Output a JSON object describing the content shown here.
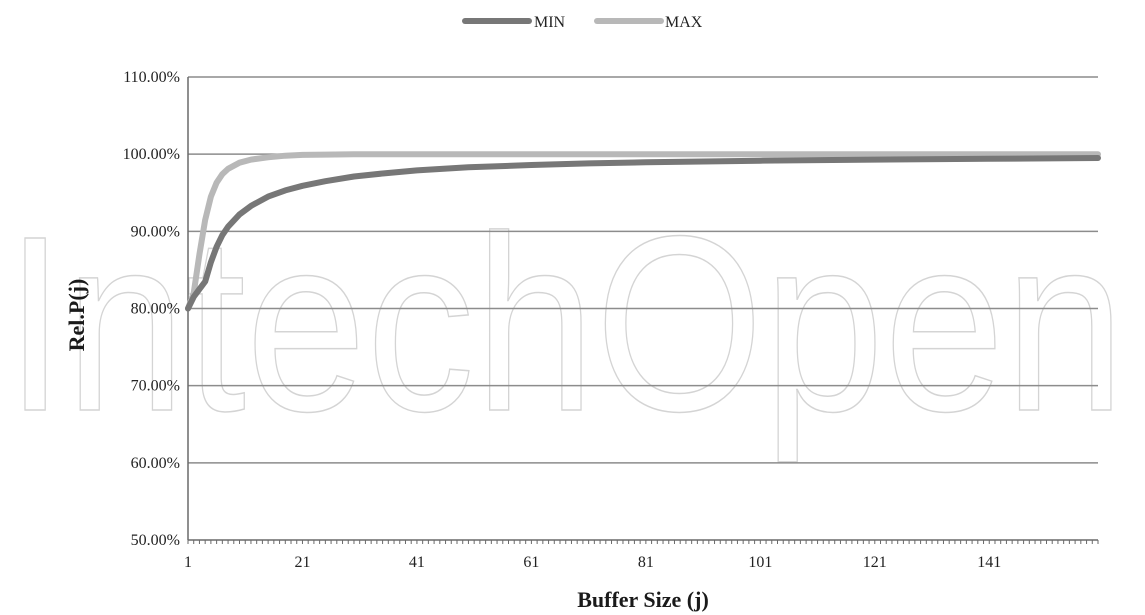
{
  "watermark": "IntechOpen",
  "chart_data": {
    "type": "line",
    "title": "",
    "xlabel": "Buffer Size (j)",
    "ylabel": "Rel.P(j)",
    "x_range": [
      1,
      160
    ],
    "x_ticks": [
      1,
      21,
      41,
      61,
      81,
      101,
      121,
      141
    ],
    "y_range": [
      50,
      110
    ],
    "y_ticks": [
      {
        "value": 50,
        "label": "50.00%"
      },
      {
        "value": 60,
        "label": "60.00%"
      },
      {
        "value": 70,
        "label": "70.00%"
      },
      {
        "value": 80,
        "label": "80.00%"
      },
      {
        "value": 90,
        "label": "90.00%"
      },
      {
        "value": 100,
        "label": "100.00%"
      },
      {
        "value": 110,
        "label": "110.00%"
      }
    ],
    "grid": "horizontal",
    "legend_position": "top-center",
    "series": [
      {
        "name": "MIN",
        "color": "#777777",
        "x": [
          1,
          2,
          3,
          4,
          5,
          6,
          7,
          8,
          10,
          12,
          15,
          18,
          21,
          25,
          30,
          35,
          41,
          50,
          61,
          71,
          81,
          91,
          101,
          121,
          141,
          160
        ],
        "y": [
          80,
          81.5,
          82.5,
          83.5,
          86,
          88,
          89.5,
          90.6,
          92.2,
          93.3,
          94.5,
          95.3,
          95.9,
          96.5,
          97.1,
          97.5,
          97.9,
          98.3,
          98.6,
          98.8,
          98.95,
          99.05,
          99.15,
          99.3,
          99.4,
          99.5
        ]
      },
      {
        "name": "MAX",
        "color": "#b8b8b8",
        "x": [
          1,
          2,
          3,
          4,
          5,
          6,
          7,
          8,
          10,
          12,
          15,
          18,
          21,
          25,
          30,
          35,
          41,
          61,
          81,
          101,
          121,
          141,
          160
        ],
        "y": [
          80,
          82,
          87,
          91.5,
          94.5,
          96.3,
          97.4,
          98.1,
          98.9,
          99.3,
          99.6,
          99.8,
          99.9,
          99.95,
          99.98,
          100,
          100,
          100,
          100,
          100,
          100,
          100,
          100
        ]
      }
    ]
  }
}
